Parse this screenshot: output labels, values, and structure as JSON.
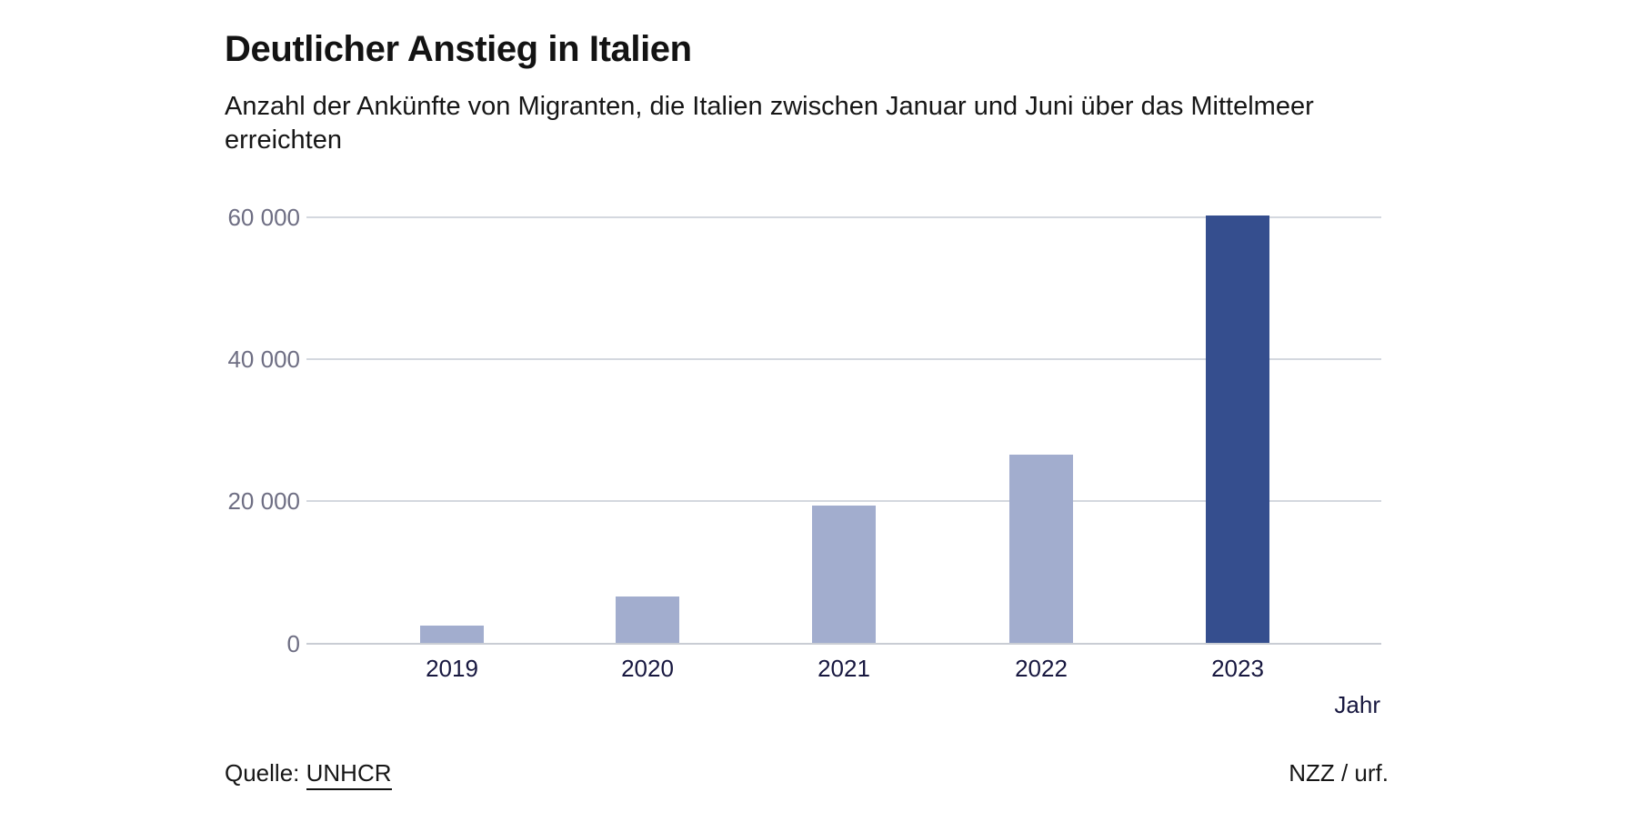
{
  "header": {
    "title": "Deutlicher Anstieg in Italien",
    "subtitle_lines": [
      "Anzahl der Ankünfte von Migranten, die Italien zwischen Januar und Juni über das Mittelmeer",
      "erreichten"
    ]
  },
  "chart_data": {
    "type": "bar",
    "title": "Deutlicher Anstieg in Italien",
    "subtitle": "Anzahl der Ankünfte von Migranten, die Italien zwischen Januar und Juni über das Mittelmeer erreichten",
    "categories": [
      "2019",
      "2020",
      "2021",
      "2022",
      "2023"
    ],
    "values": [
      2500,
      6500,
      19400,
      26500,
      60200
    ],
    "xlabel": "Jahr",
    "ylabel": "",
    "ylim": [
      0,
      60000
    ],
    "yticks": [
      0,
      20000,
      40000,
      60000
    ],
    "ytick_labels_desc": [
      "60 000",
      "40 000",
      "20 000",
      "0"
    ],
    "grid": true,
    "legend": "none",
    "bar_color_default": "#a2adce",
    "bar_color_highlight": "#354e8e",
    "highlight_category": "2023"
  },
  "footer": {
    "source_prefix": "Quelle: ",
    "source_link_label": "UNHCR",
    "credit": "NZZ / urf."
  },
  "colors": {
    "background": "#ffffff",
    "title_text": "#131313",
    "ytick_text": "#6e6e83",
    "xtick_text": "#17173f",
    "gridline": "#d4d8df",
    "axis_line": "#c9cdd4"
  }
}
